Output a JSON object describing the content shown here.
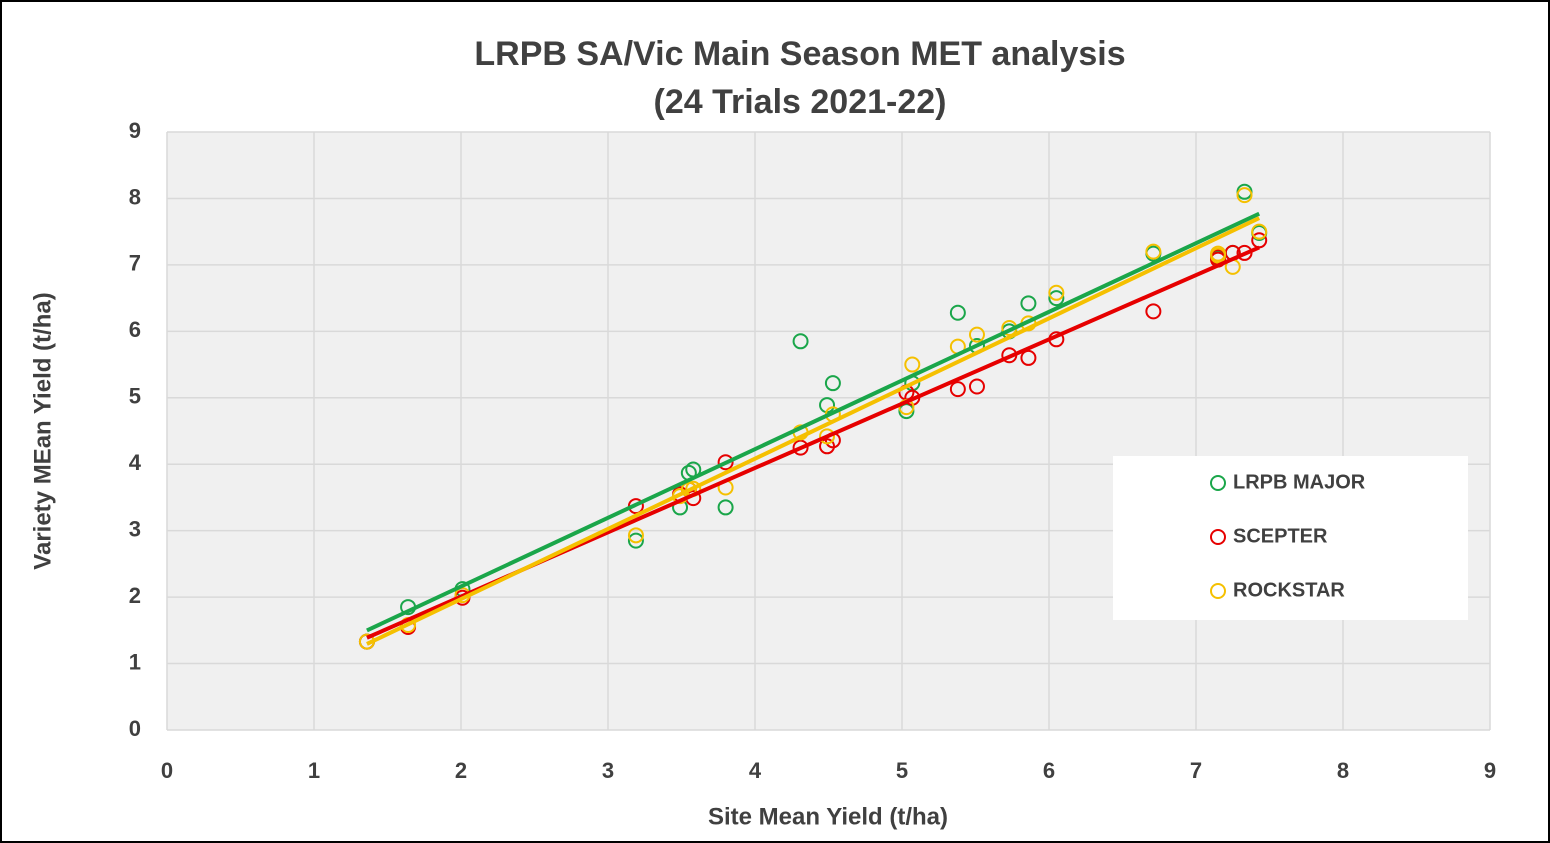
{
  "chart_data": {
    "type": "scatter",
    "title": "LRPB SA/Vic Main Season MET analysis",
    "subtitle": "(24 Trials 2021-22)",
    "x_label": "Site Mean Yield (t/ha)",
    "y_label": "Variety  MEan Yield (t/ha)",
    "x": [
      1.36,
      1.64,
      2.01,
      3.19,
      3.49,
      3.55,
      3.58,
      3.8,
      4.31,
      4.49,
      4.53,
      5.03,
      5.07,
      5.38,
      5.51,
      5.73,
      5.86,
      6.05,
      6.71,
      7.15,
      7.15,
      7.25,
      7.33,
      7.43
    ],
    "series": [
      {
        "name": "LRPB MAJOR",
        "color": "#1aa64a",
        "values": [
          1.33,
          1.85,
          2.12,
          2.85,
          3.35,
          3.87,
          3.92,
          3.35,
          5.85,
          4.89,
          5.22,
          4.8,
          5.22,
          6.28,
          5.78,
          6.0,
          6.42,
          6.5,
          7.17,
          7.1,
          7.13,
          7.18,
          8.1,
          7.48
        ]
      },
      {
        "name": "SCEPTER",
        "color": "#e60000",
        "values": [
          1.33,
          1.55,
          1.99,
          3.37,
          3.55,
          3.62,
          3.49,
          4.03,
          4.25,
          4.27,
          4.36,
          5.08,
          5.0,
          5.13,
          5.17,
          5.64,
          5.6,
          5.88,
          6.3,
          7.08,
          7.12,
          7.18,
          7.18,
          7.37
        ]
      },
      {
        "name": "ROCKSTAR",
        "color": "#f5c000",
        "values": [
          1.33,
          1.58,
          2.03,
          2.93,
          3.52,
          3.62,
          3.63,
          3.65,
          4.48,
          4.42,
          4.75,
          4.86,
          5.5,
          5.77,
          5.95,
          6.05,
          6.12,
          6.58,
          7.2,
          7.17,
          7.14,
          6.97,
          8.05,
          7.5
        ]
      }
    ],
    "xlim": [
      0,
      9
    ],
    "xticks": [
      0,
      1,
      2,
      3,
      4,
      5,
      6,
      7,
      8,
      9
    ],
    "ylim": [
      0,
      9
    ],
    "yticks": [
      0,
      1,
      2,
      3,
      4,
      5,
      6,
      7,
      8,
      9
    ],
    "grid": true,
    "trendline": "linear",
    "legend": "right"
  }
}
